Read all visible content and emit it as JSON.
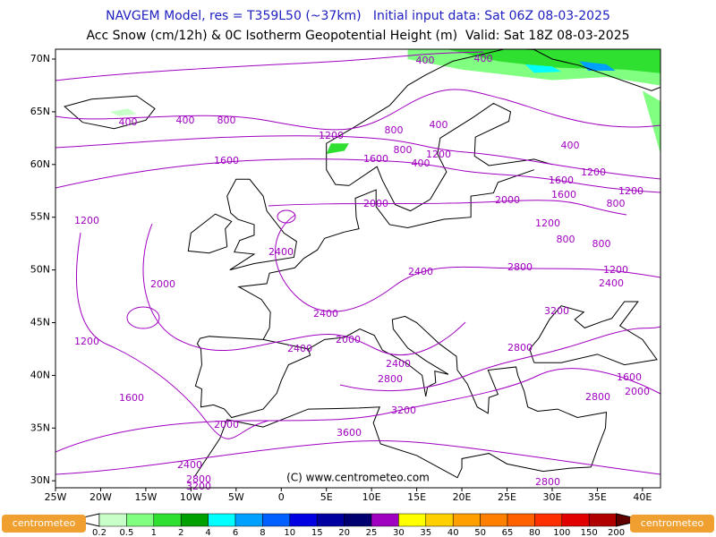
{
  "header": {
    "line1": "NAVGEM Model, res = T359L50 (~37km)   Initial input data: Sat 06Z 08-03-2025",
    "line2": "Acc Snow (cm/12h) & 0C Isotherm Geopotential Height (m)  Valid: Sat 18Z 08-03-2025"
  },
  "map": {
    "lat_labels": [
      "70N",
      "65N",
      "60N",
      "55N",
      "50N",
      "45N",
      "40N",
      "35N",
      "30N"
    ],
    "lon_labels": [
      "25W",
      "20W",
      "15W",
      "10W",
      "5W",
      "0",
      "5E",
      "10E",
      "15E",
      "20E",
      "25E",
      "30E",
      "35E",
      "40E"
    ],
    "contour_labels": [
      400,
      400,
      400,
      400,
      800,
      1200,
      800,
      400,
      1600,
      1600,
      800,
      400,
      1200,
      400,
      1200,
      1600,
      1600,
      1200,
      800,
      2000,
      2000,
      1200,
      800,
      800,
      1200,
      2400,
      2800,
      1200,
      2400,
      2400,
      2000,
      2400,
      3200,
      2000,
      1200,
      2400,
      2800,
      2400,
      2800,
      1600,
      2800,
      2000,
      1600,
      3200,
      2000,
      3600,
      2400,
      2800,
      3200,
      2800
    ],
    "copyright": "(C) www.centrometeo.com",
    "contour_color": "#a000c0"
  },
  "colorbar": {
    "labels": [
      "0.2",
      "0.5",
      "1",
      "2",
      "4",
      "6",
      "8",
      "10",
      "15",
      "20",
      "25",
      "30",
      "35",
      "40",
      "50",
      "65",
      "80",
      "100",
      "150",
      "200"
    ],
    "colors": [
      "#ffffff",
      "#c8ffc8",
      "#80ff80",
      "#30e030",
      "#00a000",
      "#00ffff",
      "#00a0ff",
      "#0060ff",
      "#0000e0",
      "#0000a0",
      "#000070",
      "#a000c0",
      "#ffff00",
      "#ffd000",
      "#ffa000",
      "#ff8000",
      "#ff6000",
      "#ff3000",
      "#e00000",
      "#b00000",
      "#600000"
    ],
    "logo": "centrometeo"
  }
}
